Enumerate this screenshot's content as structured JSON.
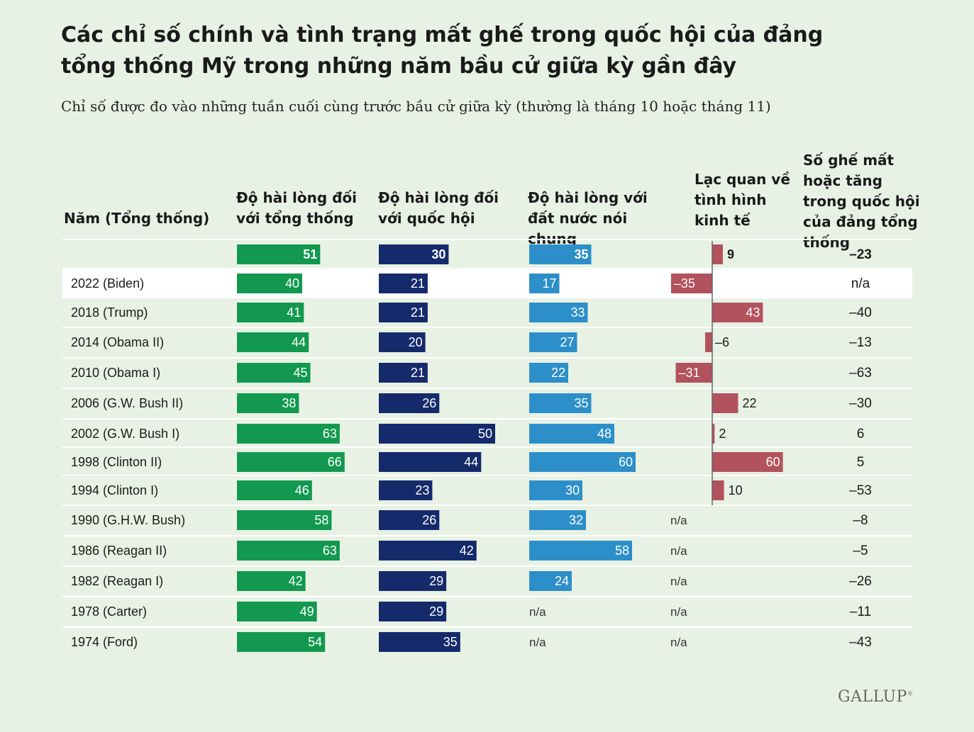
{
  "title": "Các chỉ số chính và tình trạng mất ghế trong quốc hội của đảng tổng thống Mỹ trong những năm bầu cử giữa kỳ gần đây",
  "subtitle": "Chỉ số được đo vào những tuần cuối cùng trước bầu cử giữa kỳ (thường là tháng 10 hoặc tháng 11)",
  "logo": "GALLUP",
  "colors": {
    "president": "#12994f",
    "congress": "#152a6b",
    "country": "#2d8fc9",
    "economy": "#b2525c",
    "background": "#e8f2e4",
    "highlight": "#ffffff"
  },
  "chart_data": {
    "type": "table",
    "columns": [
      "Năm (Tổng thống)",
      "Độ hài lòng đối với tổng thống",
      "Độ hài lòng đối với quốc hội",
      "Độ hài lòng với đất nước nói chung",
      "Lạc quan về tình hình kinh tế",
      "Số ghế mất hoặc tăng trong quốc hội của đảng tổng thống"
    ],
    "na_label": "n/a",
    "highlight_row": 1,
    "rows": [
      {
        "label": "",
        "president": "51",
        "congress": "30",
        "country": "35",
        "economy": "9",
        "seats": "–23"
      },
      {
        "label": "2022 (Biden)",
        "president": "40",
        "congress": "21",
        "country": "17",
        "economy": "–35",
        "seats": "n/a"
      },
      {
        "label": "2018 (Trump)",
        "president": "41",
        "congress": "21",
        "country": "33",
        "economy": "43",
        "seats": "–40"
      },
      {
        "label": "2014 (Obama II)",
        "president": "44",
        "congress": "20",
        "country": "27",
        "economy": "–6",
        "seats": "–13"
      },
      {
        "label": "2010 (Obama I)",
        "president": "45",
        "congress": "21",
        "country": "22",
        "economy": "–31",
        "seats": "–63"
      },
      {
        "label": "2006 (G.W. Bush II)",
        "president": "38",
        "congress": "26",
        "country": "35",
        "economy": "22",
        "seats": "–30"
      },
      {
        "label": "2002 (G.W. Bush I)",
        "president": "63",
        "congress": "50",
        "country": "48",
        "economy": "2",
        "seats": "6"
      },
      {
        "label": "1998 (Clinton II)",
        "president": "66",
        "congress": "44",
        "country": "60",
        "economy": "60",
        "seats": "5"
      },
      {
        "label": "1994 (Clinton I)",
        "president": "46",
        "congress": "23",
        "country": "30",
        "economy": "10",
        "seats": "–53"
      },
      {
        "label": "1990 (G.H.W. Bush)",
        "president": "58",
        "congress": "26",
        "country": "32",
        "economy": "n/a",
        "seats": "–8"
      },
      {
        "label": "1986 (Reagan II)",
        "president": "63",
        "congress": "42",
        "country": "58",
        "economy": "n/a",
        "seats": "–5"
      },
      {
        "label": "1982 (Reagan I)",
        "president": "42",
        "congress": "29",
        "country": "24",
        "economy": "n/a",
        "seats": "–26"
      },
      {
        "label": "1978 (Carter)",
        "president": "49",
        "congress": "29",
        "country": "n/a",
        "economy": "n/a",
        "seats": "–11"
      },
      {
        "label": "1974 (Ford)",
        "president": "54",
        "congress": "35",
        "country": "n/a",
        "economy": "n/a",
        "seats": "–43"
      }
    ]
  }
}
